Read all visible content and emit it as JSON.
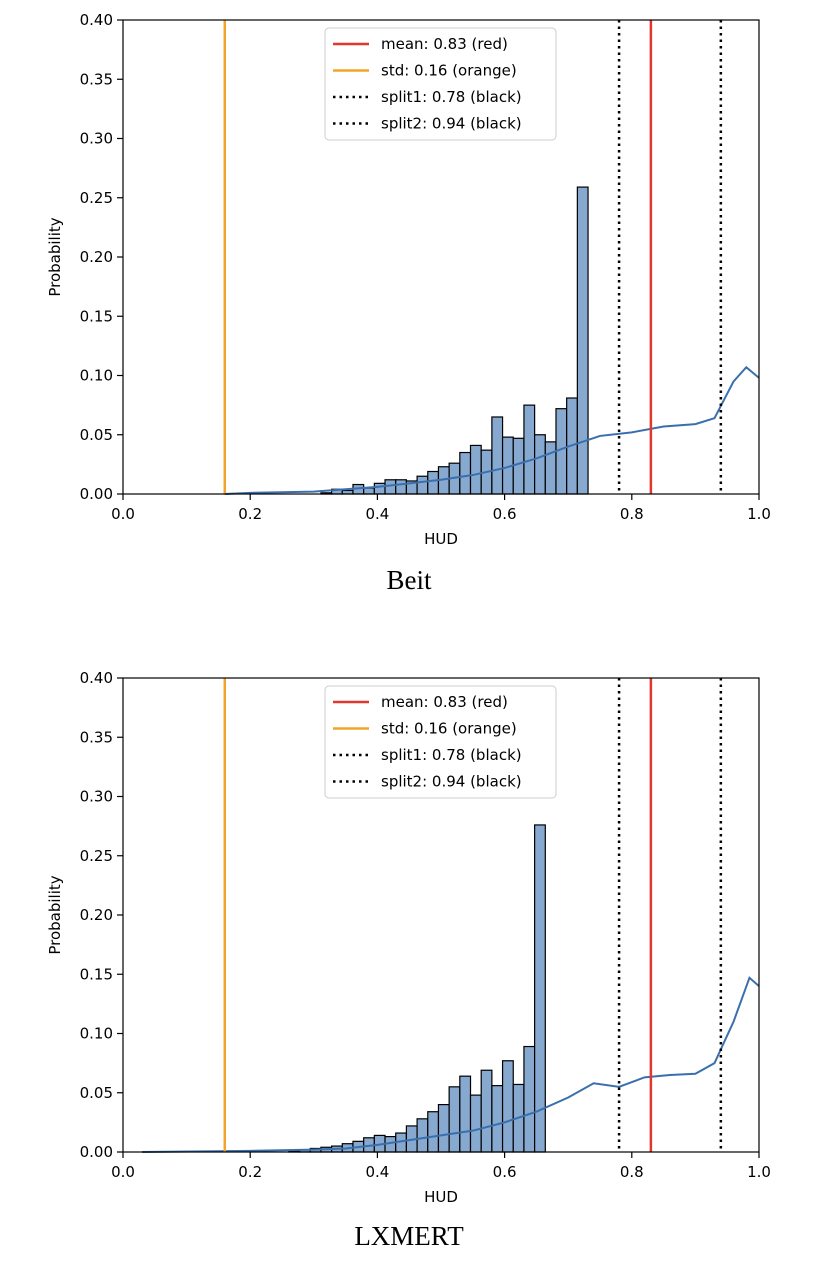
{
  "chart_data": [
    {
      "type": "bar",
      "caption": "Beit",
      "xlabel": "HUD",
      "ylabel": "Probability",
      "xlim": [
        0.0,
        1.0
      ],
      "ylim": [
        0.0,
        0.4
      ],
      "xticks": [
        "0.0",
        "0.2",
        "0.4",
        "0.6",
        "0.8",
        "1.0"
      ],
      "yticks": [
        "0.00",
        "0.05",
        "0.10",
        "0.15",
        "0.20",
        "0.25",
        "0.30",
        "0.35",
        "0.40"
      ],
      "bin_start": 0.16,
      "bin_width": 0.0168,
      "values": [
        0.0,
        0.0,
        0.0,
        0.0,
        0.0,
        0.0,
        0.0,
        0.0,
        0.0,
        0.001,
        0.004,
        0.003,
        0.008,
        0.005,
        0.009,
        0.012,
        0.012,
        0.011,
        0.015,
        0.019,
        0.023,
        0.026,
        0.035,
        0.041,
        0.037,
        0.065,
        0.048,
        0.047,
        0.075,
        0.05,
        0.044,
        0.072,
        0.081,
        0.259
      ],
      "kde": [
        [
          0.16,
          0.0
        ],
        [
          0.2,
          0.001
        ],
        [
          0.3,
          0.002
        ],
        [
          0.35,
          0.004
        ],
        [
          0.4,
          0.006
        ],
        [
          0.45,
          0.009
        ],
        [
          0.5,
          0.012
        ],
        [
          0.55,
          0.016
        ],
        [
          0.6,
          0.022
        ],
        [
          0.65,
          0.03
        ],
        [
          0.7,
          0.04
        ],
        [
          0.75,
          0.049
        ],
        [
          0.8,
          0.052
        ],
        [
          0.85,
          0.057
        ],
        [
          0.9,
          0.059
        ],
        [
          0.93,
          0.064
        ],
        [
          0.96,
          0.095
        ],
        [
          0.98,
          0.107
        ],
        [
          1.0,
          0.098
        ]
      ],
      "lines": {
        "mean": 0.83,
        "std": 0.16,
        "split1": 0.78,
        "split2": 0.94
      },
      "legend": {
        "position": "top-center",
        "entries": [
          "mean: 0.83 (red)",
          "std: 0.16 (orange)",
          "split1: 0.78 (black)",
          "split2: 0.94 (black)"
        ]
      }
    },
    {
      "type": "bar",
      "caption": "LXMERT",
      "xlabel": "HUD",
      "ylabel": "Probability",
      "xlim": [
        0.0,
        1.0
      ],
      "ylim": [
        0.0,
        0.4
      ],
      "xticks": [
        "0.0",
        "0.2",
        "0.4",
        "0.6",
        "0.8",
        "1.0"
      ],
      "yticks": [
        "0.00",
        "0.05",
        "0.10",
        "0.15",
        "0.20",
        "0.25",
        "0.30",
        "0.35",
        "0.40"
      ],
      "bin_start": 0.16,
      "bin_width": 0.0168,
      "values": [
        0.0,
        0.0,
        0.0,
        0.0,
        0.0,
        0.0,
        0.001,
        0.002,
        0.003,
        0.004,
        0.005,
        0.007,
        0.009,
        0.012,
        0.014,
        0.013,
        0.016,
        0.022,
        0.028,
        0.034,
        0.04,
        0.055,
        0.064,
        0.048,
        0.069,
        0.056,
        0.077,
        0.057,
        0.089,
        0.276
      ],
      "kde": [
        [
          0.03,
          0.0
        ],
        [
          0.2,
          0.001
        ],
        [
          0.3,
          0.002
        ],
        [
          0.35,
          0.003
        ],
        [
          0.4,
          0.006
        ],
        [
          0.45,
          0.01
        ],
        [
          0.5,
          0.014
        ],
        [
          0.55,
          0.018
        ],
        [
          0.6,
          0.025
        ],
        [
          0.65,
          0.034
        ],
        [
          0.7,
          0.046
        ],
        [
          0.74,
          0.058
        ],
        [
          0.78,
          0.055
        ],
        [
          0.82,
          0.063
        ],
        [
          0.86,
          0.065
        ],
        [
          0.9,
          0.066
        ],
        [
          0.93,
          0.075
        ],
        [
          0.96,
          0.11
        ],
        [
          0.985,
          0.147
        ],
        [
          1.0,
          0.14
        ]
      ],
      "lines": {
        "mean": 0.83,
        "std": 0.16,
        "split1": 0.78,
        "split2": 0.94
      },
      "legend": {
        "position": "top-center",
        "entries": [
          "mean: 0.83 (red)",
          "std: 0.16 (orange)",
          "split1: 0.78 (black)",
          "split2: 0.94 (black)"
        ]
      }
    }
  ],
  "colors": {
    "bar_fill": "#87a9d0",
    "bar_edge": "#000000",
    "kde": "#3a6fae",
    "mean": "#e0382b",
    "std": "#f0a52a",
    "split": "#000000"
  }
}
